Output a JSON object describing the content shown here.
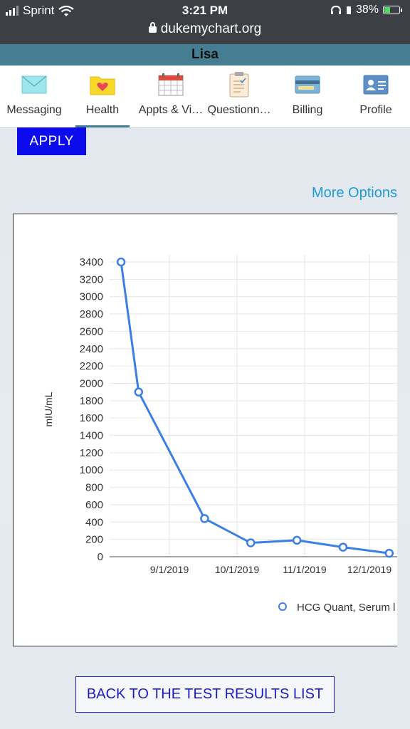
{
  "status_bar": {
    "carrier": "Sprint",
    "time": "3:21 PM",
    "battery": "38%",
    "url": "dukemychart.org"
  },
  "user": {
    "name": "Lisa"
  },
  "tabs": [
    {
      "label": "Messaging",
      "icon": "envelope-icon"
    },
    {
      "label": "Health",
      "icon": "heart-folder-icon",
      "active": true
    },
    {
      "label": "Appts & Vi…",
      "icon": "calendar-icon"
    },
    {
      "label": "Questionn…",
      "icon": "clipboard-icon"
    },
    {
      "label": "Billing",
      "icon": "credit-card-icon"
    },
    {
      "label": "Profile",
      "icon": "id-card-icon"
    }
  ],
  "apply_label": "APPLY",
  "more_options_label": "More Options",
  "back_label": "BACK TO THE TEST RESULTS LIST",
  "chart_data": {
    "type": "line",
    "ylabel": "mIU/mL",
    "xlabel": "",
    "ylim": [
      0,
      3400
    ],
    "yticks": [
      0,
      200,
      400,
      600,
      800,
      1000,
      1200,
      1400,
      1600,
      1800,
      2000,
      2200,
      2400,
      2600,
      2800,
      3000,
      3200,
      3400
    ],
    "xticks": [
      "9/1/2019",
      "10/1/2019",
      "11/1/2019",
      "12/1/2019"
    ],
    "grid": true,
    "legend": "bottom",
    "series": [
      {
        "name": "HCG Quant, Serum l",
        "color": "#3b7fe6",
        "points": [
          {
            "x": "2019-08-10",
            "y": 3400
          },
          {
            "x": "2019-08-18",
            "y": 1900
          },
          {
            "x": "2019-09-17",
            "y": 440
          },
          {
            "x": "2019-10-08",
            "y": 160
          },
          {
            "x": "2019-10-29",
            "y": 190
          },
          {
            "x": "2019-11-19",
            "y": 110
          },
          {
            "x": "2019-12-10",
            "y": 40
          }
        ]
      }
    ]
  }
}
